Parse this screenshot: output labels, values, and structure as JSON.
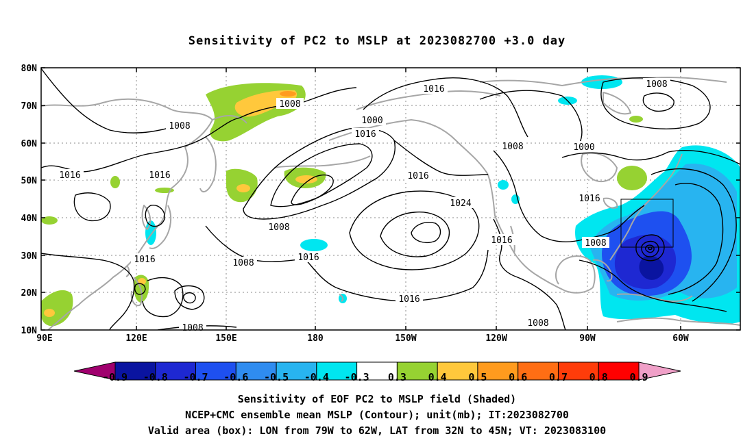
{
  "title": "Sensitivity of PC2 to MSLP at 2023082700 +3.0 day",
  "axes": {
    "lon_ticks": [
      "90E",
      "120E",
      "150E",
      "180",
      "150W",
      "120W",
      "90W",
      "60W"
    ],
    "lat_ticks": [
      "80N",
      "70N",
      "60N",
      "50N",
      "40N",
      "30N",
      "20N",
      "10N"
    ],
    "lon_range_deg_east": [
      90,
      305
    ],
    "lat_range_deg": [
      10,
      80
    ],
    "grid": "dotted"
  },
  "colorbar": {
    "labels": [
      "-0.9",
      "-0.8",
      "-0.7",
      "-0.6",
      "-0.5",
      "-0.4",
      "-0.3",
      "0.3",
      "0.4",
      "0.5",
      "0.6",
      "0.7",
      "0.8",
      "0.9"
    ],
    "colors": [
      "#a0006e",
      "#0a14a0",
      "#1e28d2",
      "#1e50f0",
      "#2f8cf0",
      "#28b4f0",
      "#00e6f0",
      "#ffffff",
      "#96d232",
      "#ffc83c",
      "#ff9b1e",
      "#ff6e14",
      "#ff3c0a",
      "#ff0000",
      "#f0a0c8"
    ]
  },
  "contour_labels": [
    "1016",
    "1008",
    "1000",
    "1016",
    "1008",
    "1000",
    "1008",
    "1008",
    "1016",
    "1016",
    "1016",
    "1008",
    "1016",
    "1024",
    "1008",
    "1016",
    "1016",
    "1016",
    "1008",
    "1008",
    "1016",
    "1008",
    "1008"
  ],
  "valid_box": {
    "lon_west": "79W",
    "lon_east": "62W",
    "lat_south": "32N",
    "lat_north": "45N"
  },
  "captions": [
    "Sensitivity of EOF PC2 to MSLP field (Shaded)",
    "NCEP+CMC ensemble mean MSLP (Contour); unit(mb); IT:2023082700",
    "Valid area (box): LON from 79W to 62W, LAT from 32N to 45N; VT: 2023083100"
  ],
  "colors": {
    "contour": "#000000",
    "coastline": "#a6a6a6",
    "grid": "#888888",
    "negative_shading": "#1e50f0",
    "positive_shading": "#96d232"
  }
}
